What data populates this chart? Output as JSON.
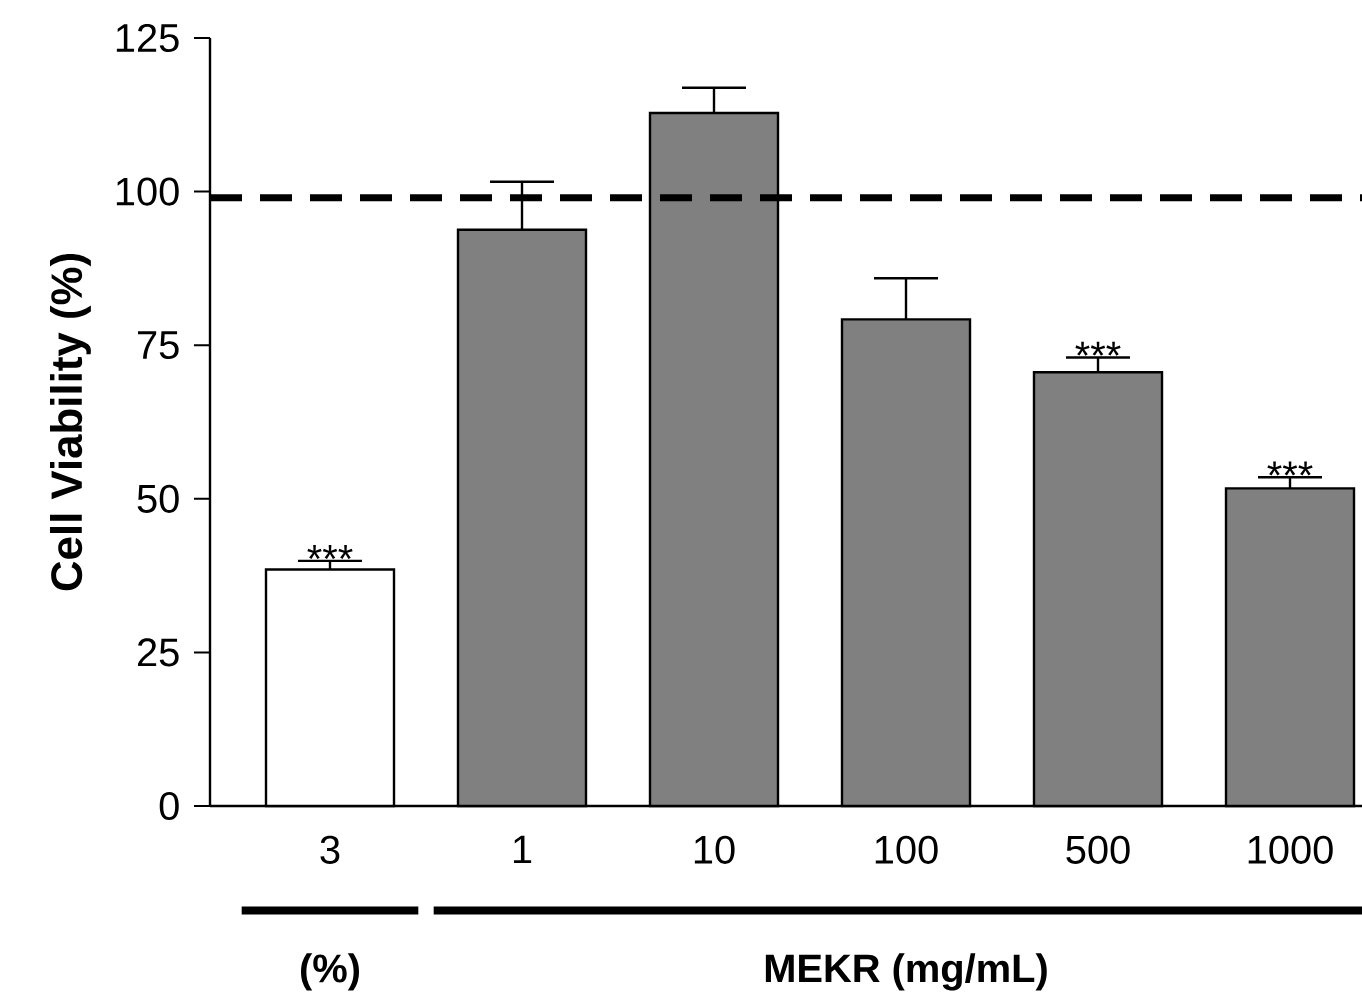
{
  "chart_data": {
    "type": "bar",
    "ylabel": "**Cell Viability (%)**",
    "categories": [
      "3",
      "1",
      "10",
      "100",
      "500",
      "1000"
    ],
    "values": [
      38.5,
      93.8,
      112.8,
      79.2,
      70.6,
      51.7
    ],
    "colors": [
      "#ffffff",
      "#808080",
      "#808080",
      "#808080",
      "#808080",
      "#808080"
    ],
    "errors": [
      [
        38.5,
        39.9
      ],
      [
        93.8,
        101.6
      ],
      [
        112.8,
        116.9
      ],
      [
        79.2,
        85.9
      ],
      [
        70.6,
        73.0
      ],
      [
        51.7,
        53.5
      ]
    ],
    "ylim": [
      0,
      125
    ],
    "yticks": [
      0,
      25,
      50,
      75,
      100,
      125
    ],
    "ref_lines": [
      {
        "axis": "y",
        "value": 99,
        "color": "#000000",
        "line_style": "dashed"
      }
    ],
    "annotations": [
      {
        "text": "***",
        "x": "3",
        "y": 39.9
      },
      {
        "text": "***",
        "x": "500",
        "y": 73.0
      },
      {
        "text": "***",
        "x": "1000",
        "y": 53.5
      },
      "**(%)**",
      "**MEKR (mg/mL)**"
    ]
  }
}
